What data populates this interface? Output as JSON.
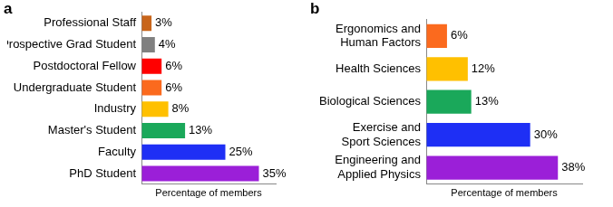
{
  "chart_data": [
    {
      "type": "bar",
      "title": "a",
      "orientation": "horizontal",
      "categories": [
        "Professional Staff",
        "Prospective Grad Student",
        "Postdoctoral Fellow",
        "Undergraduate Student",
        "Industry",
        "Master's Student",
        "Faculty",
        "PhD Student"
      ],
      "values": [
        3,
        4,
        6,
        6,
        8,
        13,
        25,
        35
      ],
      "value_labels": [
        "3%",
        "4%",
        "6%",
        "6%",
        "8%",
        "13%",
        "25%",
        "35%"
      ],
      "colors": [
        "#c8651b",
        "#808080",
        "#ff0000",
        "#fb6a1e",
        "#ffc000",
        "#1aa85a",
        "#1e2ff5",
        "#9b1fd8"
      ],
      "x_label": "Percentage of members",
      "xlim": [
        0,
        40
      ],
      "data_labels": true,
      "tick_labels": "y",
      "grid": false
    },
    {
      "type": "bar",
      "title": "b",
      "orientation": "horizontal",
      "categories": [
        "Ergonomics and Human Factors",
        "Health Sciences",
        "Biological Sciences",
        "Exercise and Sport Sciences",
        "Engineering and Applied Physics"
      ],
      "values": [
        6,
        12,
        13,
        30,
        38
      ],
      "value_labels": [
        "6%",
        "12%",
        "13%",
        "30%",
        "38%"
      ],
      "colors": [
        "#fb6a1e",
        "#ffc000",
        "#1aa85a",
        "#1e2ff5",
        "#9b1fd8"
      ],
      "x_label": "Percentage of members",
      "xlim": [
        0,
        45
      ],
      "data_labels": true,
      "tick_labels": "y",
      "grid": false
    }
  ]
}
